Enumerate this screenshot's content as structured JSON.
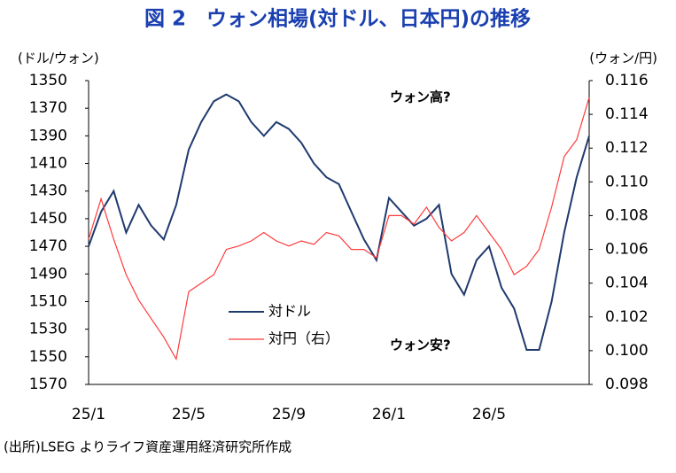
{
  "chart_data": {
    "type": "line",
    "title": "図 2　ウォン相場(対ドル、日本円)の推移",
    "y_label": "(ドル/ウォン)",
    "y2_label": "(ウォン/円)",
    "source": "(出所)LSEG よりライフ資産運用経済研究所作成",
    "annotations": [
      "ウォン高?",
      "ウォン安?"
    ],
    "categories": [
      "25/1",
      null,
      null,
      null,
      null,
      null,
      null,
      null,
      "25/5",
      null,
      null,
      null,
      null,
      null,
      null,
      null,
      "25/9",
      null,
      null,
      null,
      null,
      null,
      null,
      null,
      "26/1",
      null,
      null,
      null,
      null,
      null,
      null,
      null,
      "26/5",
      null,
      null,
      null,
      null,
      null,
      null,
      null,
      null
    ],
    "ylim": [
      1350,
      1570
    ],
    "y_inverted": true,
    "yticks": [
      1350,
      1370,
      1390,
      1410,
      1430,
      1450,
      1470,
      1490,
      1510,
      1530,
      1550,
      1570
    ],
    "y2lim": [
      0.098,
      0.116
    ],
    "y2ticks": [
      {
        "value": 0.098,
        "label": "0.098"
      },
      {
        "value": 0.1,
        "label": "0.100"
      },
      0.102,
      0.104,
      0.106,
      0.108,
      {
        "value": 0.11,
        "label": "0.110"
      },
      0.112,
      0.114,
      0.116
    ],
    "legend": "lower-center",
    "series": [
      {
        "name": "対ドル",
        "color": "#1f3a6e",
        "values": [
          1470,
          1445,
          1430,
          1460,
          1440,
          1455,
          1465,
          1440,
          1400,
          1380,
          1365,
          1360,
          1365,
          1380,
          1390,
          1380,
          1385,
          1395,
          1410,
          1420,
          1425,
          1445,
          1465,
          1480,
          1435,
          1445,
          1455,
          1450,
          1440,
          1490,
          1505,
          1480,
          1470,
          1500,
          1515,
          1545,
          1545,
          1510,
          1460,
          1420,
          1390
        ]
      },
      {
        "name": "対円（右）",
        "color": "#ff3b3b",
        "axis": "y2",
        "values": [
          0.1066,
          0.109,
          0.1066,
          0.1045,
          0.103,
          0.1019,
          0.1008,
          0.0995,
          0.1035,
          0.104,
          0.1045,
          0.106,
          0.1062,
          0.1065,
          0.107,
          0.1065,
          0.1062,
          0.1065,
          0.1063,
          0.107,
          0.1068,
          0.106,
          0.106,
          0.1055,
          0.108,
          0.108,
          0.1075,
          0.1085,
          0.1073,
          0.1065,
          0.107,
          0.108,
          0.107,
          0.106,
          0.1045,
          0.105,
          0.106,
          0.1085,
          0.1115,
          0.1125,
          0.115
        ]
      }
    ]
  }
}
